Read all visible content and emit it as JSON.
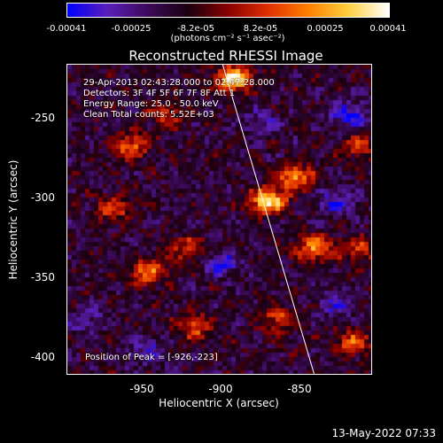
{
  "colorbar": {
    "ticks": [
      "-0.00041",
      "-0.00025",
      "-8.2e-05",
      "8.2e-05",
      "0.00025",
      "0.00041"
    ],
    "units": "(photons cm⁻² s⁻¹ asec⁻²)"
  },
  "chart_data": {
    "type": "heatmap",
    "title": "Reconstructed RHESSI Image",
    "xlabel": "Heliocentric X (arcsec)",
    "ylabel": "Heliocentric Y (arcsec)",
    "xlim": [
      -993,
      -860
    ],
    "ylim": [
      -410,
      -213
    ],
    "x_ticks": [
      "-950",
      "-900",
      "-850"
    ],
    "x_tick_values": [
      -950,
      -900,
      -850
    ],
    "y_ticks": [
      "-250",
      "-300",
      "-350",
      "-400"
    ],
    "y_tick_values": [
      -250,
      -300,
      -350,
      -400
    ],
    "color_range": [
      -0.00041,
      0.00041
    ],
    "colormap": [
      "#0000ff",
      "#5a1fb8",
      "#3c0a5a",
      "#1a0010",
      "#8a0000",
      "#e03000",
      "#ff8000",
      "#ffd040",
      "#ffffff"
    ],
    "peak": [
      -926,
      -223
    ],
    "limb_line": [
      [
        -925,
        -213
      ],
      [
        -885,
        -410
      ]
    ],
    "bright_sources": [
      {
        "x": -920,
        "y": -222,
        "amp": 1.0
      },
      {
        "x": -905,
        "y": -300,
        "amp": 1.0
      },
      {
        "x": -893,
        "y": -285,
        "amp": 0.75
      },
      {
        "x": -885,
        "y": -330,
        "amp": 0.7
      },
      {
        "x": -965,
        "y": -265,
        "amp": 0.6
      },
      {
        "x": -958,
        "y": -345,
        "amp": 0.65
      },
      {
        "x": -973,
        "y": -305,
        "amp": 0.5
      },
      {
        "x": -937,
        "y": -380,
        "amp": 0.55
      },
      {
        "x": -900,
        "y": -375,
        "amp": 0.5
      },
      {
        "x": -868,
        "y": -390,
        "amp": 0.55
      },
      {
        "x": -940,
        "y": -330,
        "amp": 0.45
      },
      {
        "x": -865,
        "y": -265,
        "amp": 0.4
      },
      {
        "x": -866,
        "y": -330,
        "amp": 0.45
      },
      {
        "x": -950,
        "y": -245,
        "amp": 0.4
      }
    ],
    "dark_regions": [
      {
        "x": -870,
        "y": -245,
        "amp": 0.9
      },
      {
        "x": -875,
        "y": -300,
        "amp": 0.7
      },
      {
        "x": -925,
        "y": -340,
        "amp": 0.7
      },
      {
        "x": -958,
        "y": -395,
        "amp": 0.6
      },
      {
        "x": -875,
        "y": -365,
        "amp": 0.6
      },
      {
        "x": -985,
        "y": -375,
        "amp": 0.5
      },
      {
        "x": -908,
        "y": -250,
        "amp": 0.5
      }
    ]
  },
  "annotations": {
    "time": "29-Apr-2013 02:43:28.000 to 02:47:28.000",
    "detectors": "Detectors: 3F 4F 5F 6F 7F 8F Att 1",
    "energy": "Energy Range: 25.0 - 50.0 keV",
    "clean": "Clean     Total counts: 5.52E+03",
    "peak_text": "Position of Peak = [-926,-223]"
  },
  "timestamp": "13-May-2022 07:33"
}
